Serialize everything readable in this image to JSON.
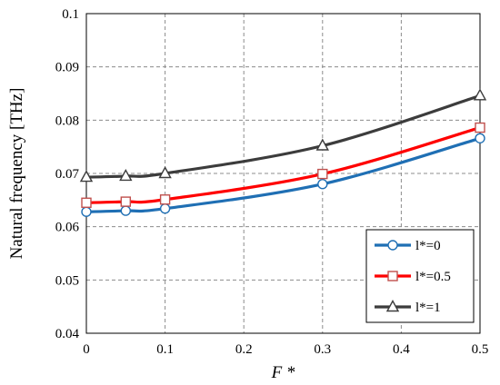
{
  "chart_data": {
    "type": "line",
    "title": "",
    "xlabel": "F *",
    "ylabel": "Natural frequency [THz]",
    "xlim": [
      0,
      0.5
    ],
    "ylim": [
      0.04,
      0.1
    ],
    "xticks": [
      0,
      0.1,
      0.2,
      0.3,
      0.4,
      0.5
    ],
    "xtick_labels": [
      "0",
      "0.1",
      "0.2",
      "0.3",
      "0.4",
      "0.5"
    ],
    "yticks": [
      0.04,
      0.05,
      0.06,
      0.07,
      0.08,
      0.09,
      0.1
    ],
    "ytick_labels": [
      "0.04",
      "0.05",
      "0.06",
      "0.07",
      "0.08",
      "0.09",
      "0.1"
    ],
    "grid": true,
    "legend_position": "bottom-right",
    "series": [
      {
        "name": "l*=0",
        "color": "#1f6fb4",
        "marker": "circle",
        "x": [
          0,
          0.05,
          0.1,
          0.3,
          0.5
        ],
        "y": [
          0.0628,
          0.063,
          0.0634,
          0.068,
          0.0766
        ]
      },
      {
        "name": "l*=0.5",
        "color": "#ff0000",
        "marker_color": "#c0504d",
        "marker": "square",
        "x": [
          0,
          0.05,
          0.1,
          0.3,
          0.5
        ],
        "y": [
          0.0645,
          0.0647,
          0.0651,
          0.0699,
          0.0786
        ]
      },
      {
        "name": "l*=1",
        "color": "#3c3c3c",
        "marker": "triangle",
        "x": [
          0,
          0.05,
          0.1,
          0.3,
          0.5
        ],
        "y": [
          0.0693,
          0.0695,
          0.07,
          0.0752,
          0.0846
        ]
      }
    ]
  }
}
